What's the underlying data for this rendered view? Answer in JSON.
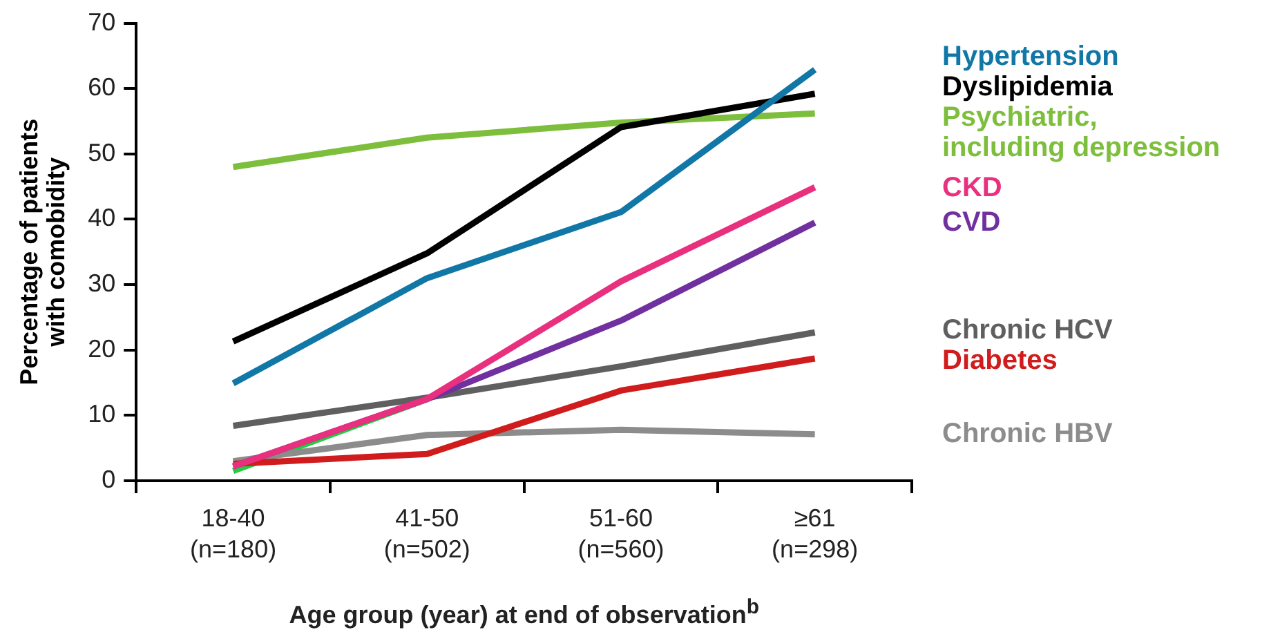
{
  "chart_data": {
    "type": "line",
    "xlabel": "Age group (year) at end of observation$^{b}$",
    "ylabel": "Percentage of patients with comobidity",
    "categories": [
      "18-40 (n=180)",
      "41-50 (n=502)",
      "51-60 (n=560)",
      "≥61 (n=298)"
    ],
    "ylim": [
      0,
      70
    ],
    "yticks": [
      0,
      10,
      20,
      30,
      40,
      50,
      60,
      70
    ],
    "grid": false,
    "line_style": "solid",
    "series": [
      {
        "color": "#22cc44",
        "values": [
          1.5,
          12.5,
          null,
          null
        ]
      },
      {
        "name": "Chronic HBV",
        "color": "#8c8c8c",
        "values": [
          3,
          7,
          7.8,
          7.1
        ]
      },
      {
        "name": "Chronic HCV",
        "color": "#5f5f5f",
        "values": [
          8.4,
          12.7,
          17.5,
          22.7
        ]
      },
      {
        "name": "CVD",
        "color": "#7030a0",
        "values": [
          2.2,
          12.5,
          24.5,
          39.5
        ]
      },
      {
        "name": "Diabetes",
        "color": "#d01c1c",
        "values": [
          2.6,
          4.1,
          13.8,
          18.7
        ]
      },
      {
        "name": "CKD",
        "color": "#e8307f",
        "values": [
          2.2,
          12.5,
          30.5,
          44.9
        ]
      },
      {
        "name": "Psychiatric, including depression",
        "color": "#7dbe3c",
        "values": [
          48,
          52.5,
          54.8,
          56.2
        ]
      },
      {
        "name": "Dyslipidemia",
        "color": "#000000",
        "values": [
          21.3,
          34.8,
          54.1,
          59.2
        ]
      },
      {
        "name": "Hypertension",
        "color": "#1177a6",
        "values": [
          14.9,
          31,
          41.1,
          62.9
        ]
      }
    ]
  }
}
